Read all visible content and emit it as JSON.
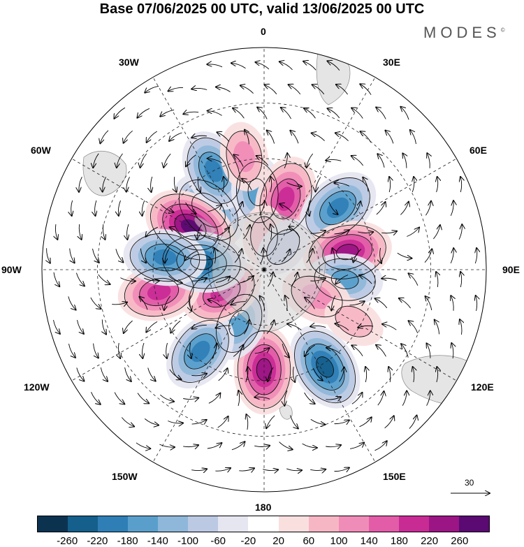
{
  "title": "Base 07/06/2025 00 UTC, valid 13/06/2025 00 UTC",
  "brand": "MODES",
  "brand_mark": "©",
  "longitude_labels": {
    "l0": "0",
    "l30e": "30E",
    "l60e": "60E",
    "l90e": "90E",
    "l120e": "120E",
    "l150e": "150E",
    "l180": "180",
    "l150w": "150W",
    "l120w": "120W",
    "l90w": "90W",
    "l60w": "60W",
    "l30w": "30W"
  },
  "reference_vector": "30",
  "colorbar": {
    "colors": [
      "#0b3350",
      "#155f8c",
      "#2f7fb6",
      "#5a9fcc",
      "#8fb7d9",
      "#bcc9e3",
      "#e6e6f1",
      "#ffffff",
      "#fadfdf",
      "#f7b6c4",
      "#f08cb8",
      "#e25ca8",
      "#c92b95",
      "#9c1585",
      "#5a0a72"
    ],
    "ticks": [
      "-260",
      "-220",
      "-180",
      "-140",
      "-100",
      "-60",
      "-20",
      "20",
      "60",
      "100",
      "140",
      "180",
      "220",
      "260"
    ]
  },
  "anomaly_centers": [
    {
      "lon": -43,
      "colat": 22,
      "value": -180
    },
    {
      "lon": -60,
      "colat": 23,
      "value": 260
    },
    {
      "lon": -27,
      "colat": 30,
      "value": -180
    },
    {
      "lon": -5,
      "colat": 21,
      "value": -140
    },
    {
      "lon": 17,
      "colat": 20,
      "value": 200
    },
    {
      "lon": 50,
      "colat": 26,
      "value": -200
    },
    {
      "lon": 78,
      "colat": 23,
      "value": 220
    },
    {
      "lon": 97,
      "colat": 22,
      "value": -140
    },
    {
      "lon": 117,
      "colat": 16,
      "value": 120
    },
    {
      "lon": 148,
      "colat": 31,
      "value": -220
    },
    {
      "lon": 180,
      "colat": 27,
      "value": 220
    },
    {
      "lon": -155,
      "colat": 16,
      "value": -140
    },
    {
      "lon": -142,
      "colat": 28,
      "value": -180
    },
    {
      "lon": -118,
      "colat": 13,
      "value": 180
    },
    {
      "lon": -102,
      "colat": 29,
      "value": 180
    },
    {
      "lon": -83,
      "colat": 17,
      "value": -220
    },
    {
      "lon": -83,
      "colat": 27,
      "value": -180
    },
    {
      "lon": 0,
      "colat": 9,
      "value": 60
    },
    {
      "lon": 40,
      "colat": 8,
      "value": -60
    },
    {
      "lon": 120,
      "colat": 28,
      "value": 60
    },
    {
      "lon": -10,
      "colat": 31,
      "value": 100
    }
  ]
}
